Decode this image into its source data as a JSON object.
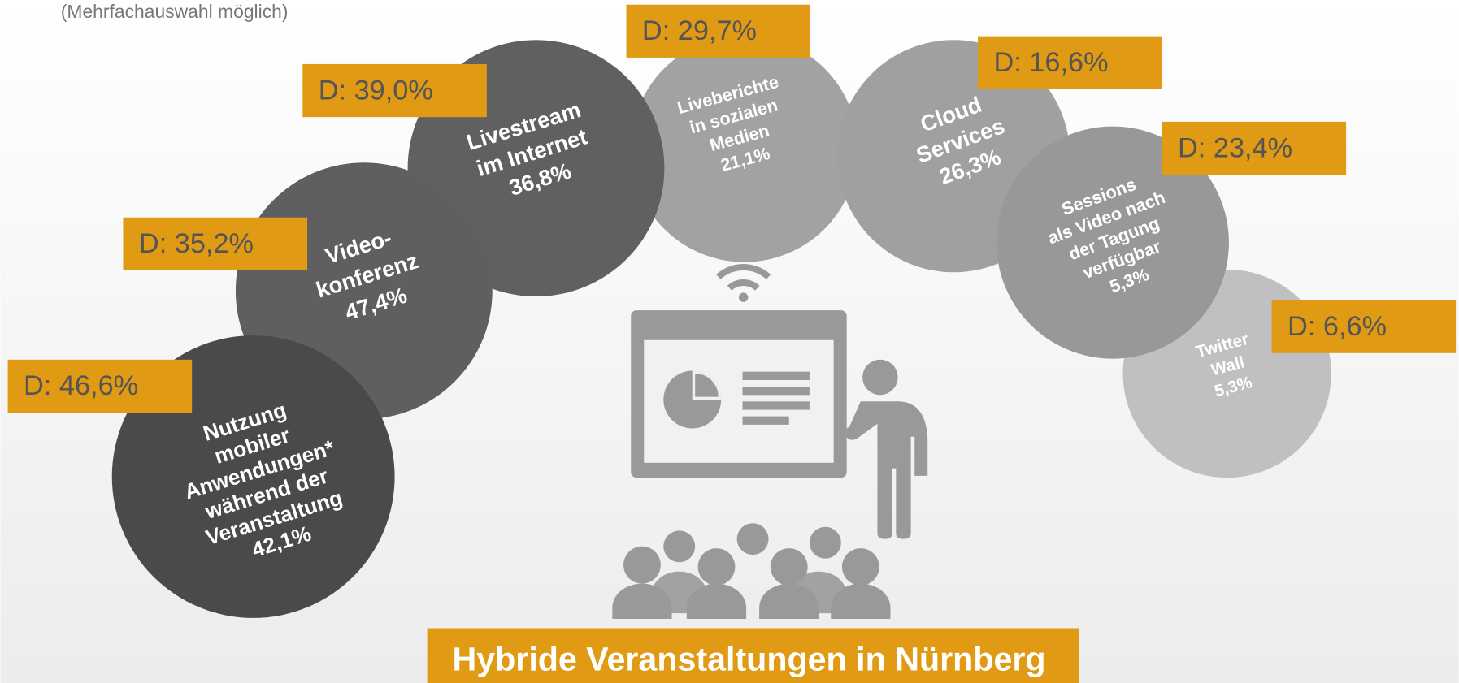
{
  "subtitle": "(Mehrfachauswahl möglich)",
  "title": "Hybride Veranstaltungen in Nürnberg",
  "bubbles": [
    {
      "lines": [
        "Nutzung",
        "mobiler",
        "Anwendungen*",
        "während der",
        "Veranstaltung"
      ],
      "value": "42,1%",
      "comparison": "D: 46,6%"
    },
    {
      "lines": [
        "Video-",
        "konferenz"
      ],
      "value": "47,4%",
      "comparison": "D: 35,2%"
    },
    {
      "lines": [
        "Livestream",
        "im Internet"
      ],
      "value": "36,8%",
      "comparison": "D: 39,0%"
    },
    {
      "lines": [
        "Liveberichte",
        "in sozialen",
        "Medien"
      ],
      "value": "21,1%",
      "comparison": "D: 29,7%"
    },
    {
      "lines": [
        "Cloud",
        "Services"
      ],
      "value": "26,3%",
      "comparison": "D: 16,6%"
    },
    {
      "lines": [
        "Sessions",
        "als Video nach",
        "der Tagung",
        "verfügbar"
      ],
      "value": "5,3%",
      "comparison": "D: 23,4%"
    },
    {
      "lines": [
        "Twitter",
        "Wall"
      ],
      "value": "5,3%",
      "comparison": "D: 6,6%"
    }
  ]
}
